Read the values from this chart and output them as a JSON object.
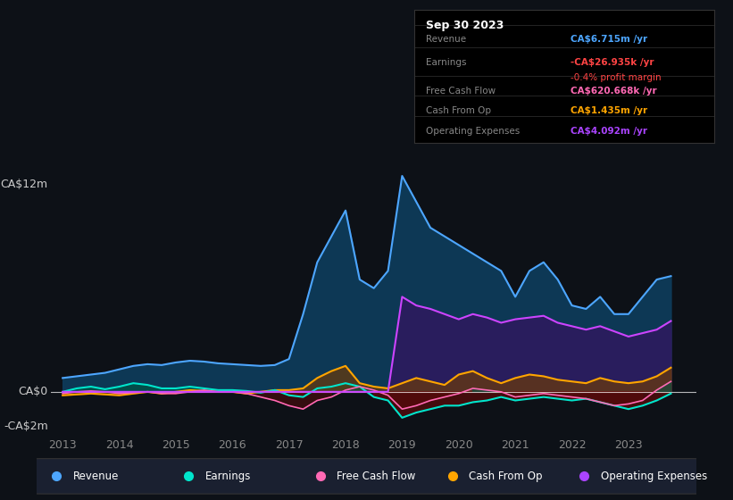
{
  "bg_color": "#0d1117",
  "plot_bg_color": "#0d1117",
  "grid_color": "#1e2a3a",
  "title_text": "Sep 30 2023",
  "ylabel_top": "CA$12m",
  "ylabel_zero": "CA$0",
  "ylabel_neg": "-CA$2m",
  "xlim": [
    2012.8,
    2024.2
  ],
  "ylim": [
    -2.5,
    14
  ],
  "xticks": [
    2013,
    2014,
    2015,
    2016,
    2017,
    2018,
    2019,
    2020,
    2021,
    2022,
    2023
  ],
  "zero_line_color": "#ffffff",
  "info_box": {
    "title": "Sep 30 2023",
    "rows": [
      {
        "label": "Revenue",
        "value": "CA$6.715m /yr",
        "value_color": "#4da6ff",
        "sub": null
      },
      {
        "label": "Earnings",
        "value": "-CA$26.935k /yr",
        "value_color": "#ff4444",
        "sub": "-0.4% profit margin",
        "sub_color": "#ff4444"
      },
      {
        "label": "Free Cash Flow",
        "value": "CA$620.668k /yr",
        "value_color": "#ff69b4",
        "sub": null
      },
      {
        "label": "Cash From Op",
        "value": "CA$1.435m /yr",
        "value_color": "#ffa500",
        "sub": null
      },
      {
        "label": "Operating Expenses",
        "value": "CA$4.092m /yr",
        "value_color": "#aa44ff",
        "sub": null
      }
    ]
  },
  "legend": [
    {
      "label": "Revenue",
      "color": "#4da6ff"
    },
    {
      "label": "Earnings",
      "color": "#00e5cc"
    },
    {
      "label": "Free Cash Flow",
      "color": "#ff69b4"
    },
    {
      "label": "Cash From Op",
      "color": "#ffa500"
    },
    {
      "label": "Operating Expenses",
      "color": "#aa44ff"
    }
  ],
  "series": {
    "x": [
      2013.0,
      2013.25,
      2013.5,
      2013.75,
      2014.0,
      2014.25,
      2014.5,
      2014.75,
      2015.0,
      2015.25,
      2015.5,
      2015.75,
      2016.0,
      2016.25,
      2016.5,
      2016.75,
      2017.0,
      2017.25,
      2017.5,
      2017.75,
      2018.0,
      2018.25,
      2018.5,
      2018.75,
      2019.0,
      2019.25,
      2019.5,
      2019.75,
      2020.0,
      2020.25,
      2020.5,
      2020.75,
      2021.0,
      2021.25,
      2021.5,
      2021.75,
      2022.0,
      2022.25,
      2022.5,
      2022.75,
      2023.0,
      2023.25,
      2023.5,
      2023.75
    ],
    "revenue": [
      0.8,
      0.9,
      1.0,
      1.1,
      1.3,
      1.5,
      1.6,
      1.55,
      1.7,
      1.8,
      1.75,
      1.65,
      1.6,
      1.55,
      1.5,
      1.55,
      1.9,
      4.5,
      7.5,
      9.0,
      10.5,
      6.5,
      6.0,
      7.0,
      12.5,
      11.0,
      9.5,
      9.0,
      8.5,
      8.0,
      7.5,
      7.0,
      5.5,
      7.0,
      7.5,
      6.5,
      5.0,
      4.8,
      5.5,
      4.5,
      4.5,
      5.5,
      6.5,
      6.7
    ],
    "earnings": [
      0.0,
      0.2,
      0.3,
      0.15,
      0.3,
      0.5,
      0.4,
      0.2,
      0.2,
      0.3,
      0.2,
      0.1,
      0.1,
      0.05,
      -0.05,
      0.1,
      -0.2,
      -0.3,
      0.2,
      0.3,
      0.5,
      0.3,
      -0.3,
      -0.5,
      -1.5,
      -1.2,
      -1.0,
      -0.8,
      -0.8,
      -0.6,
      -0.5,
      -0.3,
      -0.5,
      -0.4,
      -0.3,
      -0.4,
      -0.5,
      -0.4,
      -0.6,
      -0.8,
      -1.0,
      -0.8,
      -0.5,
      -0.1
    ],
    "free_cash_flow": [
      -0.1,
      0.0,
      0.05,
      0.0,
      -0.1,
      -0.05,
      0.0,
      -0.1,
      -0.1,
      0.0,
      0.1,
      0.0,
      0.0,
      -0.1,
      -0.3,
      -0.5,
      -0.8,
      -1.0,
      -0.5,
      -0.3,
      0.1,
      0.3,
      0.1,
      -0.2,
      -1.0,
      -0.8,
      -0.5,
      -0.3,
      -0.1,
      0.2,
      0.1,
      0.0,
      -0.3,
      -0.2,
      -0.1,
      -0.2,
      -0.3,
      -0.4,
      -0.6,
      -0.8,
      -0.7,
      -0.5,
      0.1,
      0.6
    ],
    "cash_from_op": [
      -0.2,
      -0.15,
      -0.1,
      -0.15,
      -0.2,
      -0.1,
      0.0,
      -0.1,
      0.0,
      0.1,
      0.05,
      0.0,
      0.0,
      -0.1,
      0.0,
      0.1,
      0.1,
      0.2,
      0.8,
      1.2,
      1.5,
      0.5,
      0.3,
      0.2,
      0.5,
      0.8,
      0.6,
      0.4,
      1.0,
      1.2,
      0.8,
      0.5,
      0.8,
      1.0,
      0.9,
      0.7,
      0.6,
      0.5,
      0.8,
      0.6,
      0.5,
      0.6,
      0.9,
      1.4
    ],
    "operating_expenses": [
      0.0,
      0.0,
      0.0,
      0.0,
      0.0,
      0.0,
      0.0,
      0.0,
      0.0,
      0.0,
      0.0,
      0.0,
      0.0,
      0.0,
      0.0,
      0.0,
      0.0,
      0.0,
      0.0,
      0.0,
      0.0,
      0.0,
      0.0,
      0.0,
      5.5,
      5.0,
      4.8,
      4.5,
      4.2,
      4.5,
      4.3,
      4.0,
      4.2,
      4.3,
      4.4,
      4.0,
      3.8,
      3.6,
      3.8,
      3.5,
      3.2,
      3.4,
      3.6,
      4.1
    ]
  }
}
